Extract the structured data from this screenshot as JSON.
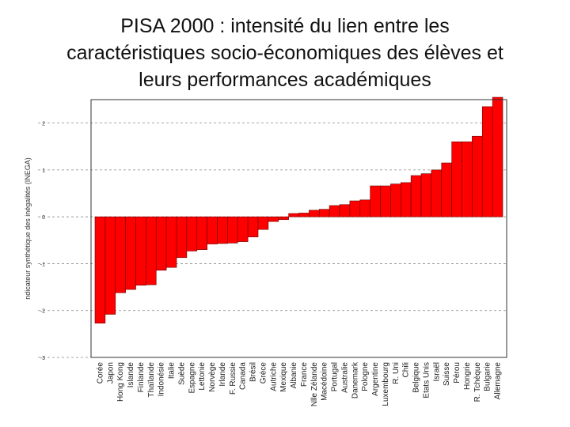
{
  "title_lines": [
    "PISA 2000 : intensité du lien entre les",
    "caractéristiques socio-économiques des élèves et",
    "leurs performances académiques"
  ],
  "chart_data": {
    "type": "bar",
    "title": "PISA 2000 : intensité du lien entre les caractéristiques socio-économiques des élèves et leurs performances académiques",
    "xlabel": "",
    "ylabel": "ndicateur synthétique des inégalités (INEGA)",
    "ylim": [
      -3,
      2.5
    ],
    "yticks": [
      -3,
      -2,
      -1,
      0,
      1,
      2
    ],
    "ytick_labels": [
      "-3",
      "-2",
      "-1",
      "0",
      "1",
      "2"
    ],
    "grid": true,
    "baseline": 0,
    "color": "#ff0000",
    "categories": [
      "Corée",
      "Japon",
      "Hong Kong",
      "Islande",
      "Finlande",
      "Thaïlande",
      "Indonésie",
      "Italie",
      "Suède",
      "Espagne",
      "Lettonie",
      "Norvège",
      "Irlande",
      "F. Russie",
      "Canada",
      "Brésil",
      "Grèce",
      "Autriche",
      "Mexique",
      "Albanie",
      "France",
      "Nlle Zélande",
      "Macédoine",
      "Portugal",
      "Australie",
      "Danemark",
      "Pologne",
      "Argentine",
      "Luxembourg",
      "R. Uni",
      "Chili",
      "Belgique",
      "Etats Unis",
      "Israël",
      "Suisse",
      "Pérou",
      "Hongrie",
      "R. Tchèque",
      "Bulgarie",
      "Allemagne"
    ],
    "values": [
      -2.27,
      -2.08,
      -1.62,
      -1.55,
      -1.46,
      -1.45,
      -1.14,
      -1.08,
      -0.87,
      -0.73,
      -0.7,
      -0.58,
      -0.57,
      -0.56,
      -0.53,
      -0.43,
      -0.27,
      -0.1,
      -0.06,
      0.07,
      0.08,
      0.14,
      0.16,
      0.24,
      0.26,
      0.34,
      0.36,
      0.66,
      0.66,
      0.7,
      0.73,
      0.88,
      0.92,
      1.0,
      1.15,
      1.6,
      1.6,
      1.72,
      2.35,
      2.55
    ]
  }
}
